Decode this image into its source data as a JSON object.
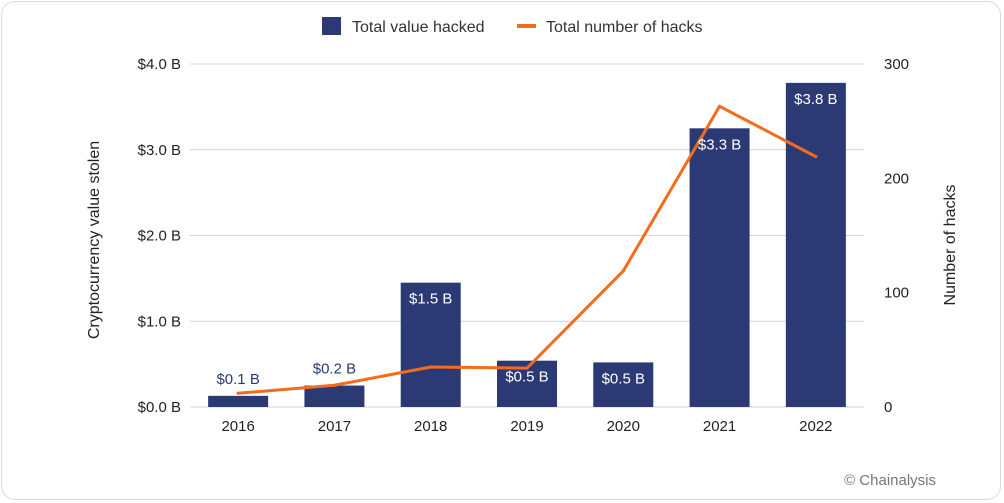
{
  "chart_data": {
    "type": "bar",
    "categories": [
      "2016",
      "2017",
      "2018",
      "2019",
      "2020",
      "2021",
      "2022"
    ],
    "series": [
      {
        "name": "Total value hacked",
        "kind": "bar",
        "axis": "left",
        "values": [
          0.13,
          0.25,
          1.45,
          0.54,
          0.52,
          3.25,
          3.78
        ],
        "labels": [
          "$0.1 B",
          "$0.2 B",
          "$1.5 B",
          "$0.5 B",
          "$0.5 B",
          "$3.3 B",
          "$3.8 B"
        ],
        "color": "#2b3a74"
      },
      {
        "name": "Total number of hacks",
        "kind": "line",
        "axis": "right",
        "values": [
          12,
          19,
          35,
          34,
          119,
          263,
          219
        ],
        "color": "#f36b1c"
      }
    ],
    "y_left": {
      "label": "Cryptocurrency value stolen",
      "range": [
        0,
        4
      ],
      "ticks": [
        0,
        1,
        2,
        3,
        4
      ],
      "tick_labels": [
        "$0.0 B",
        "$1.0 B",
        "$2.0 B",
        "$3.0 B",
        "$4.0 B"
      ]
    },
    "y_right": {
      "label": "Number of hacks",
      "range": [
        0,
        300
      ],
      "ticks": [
        0,
        100,
        200,
        300
      ],
      "tick_labels": [
        "0",
        "100",
        "200",
        "300"
      ]
    },
    "grid": true,
    "legend_position": "top-center",
    "label_color_outside": "#2b3a74",
    "label_color_inside": "#ffffff",
    "grid_color": "#d4d4d4"
  },
  "watermark": "© Chainalysis"
}
